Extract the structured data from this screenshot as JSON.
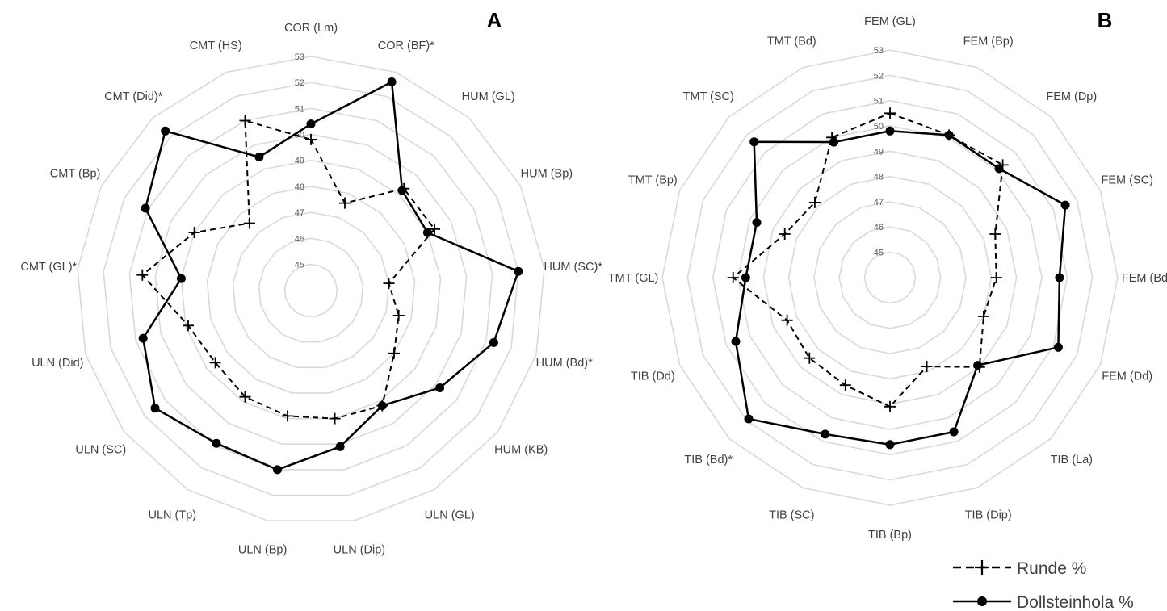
{
  "chart_data": [
    {
      "type": "radar",
      "panel": "A",
      "categories": [
        "COR (Lm)",
        "COR (BF)*",
        "HUM (GL)",
        "HUM (Bp)",
        "HUM (SC)*",
        "HUM (Bd)*",
        "HUM (KB)",
        "ULN (GL)",
        "ULN (Dip)",
        "ULN (Bp)",
        "ULN (Tp)",
        "ULN (SC)",
        "ULN (Did)",
        "CMT (GL)*",
        "CMT (Bp)",
        "CMT (Did)*",
        "CMT (HS)"
      ],
      "ticks": [
        "45",
        "46",
        "47",
        "48",
        "49",
        "50",
        "51",
        "52",
        "53"
      ],
      "rlim": [
        45,
        53
      ],
      "series": [
        {
          "name": "Runde %",
          "style": "dashed-plus",
          "values": [
            49.8,
            47.6,
            49.3,
            49.3,
            47.0,
            47.5,
            48.0,
            49.2,
            49.0,
            48.9,
            48.8,
            48.6,
            48.9,
            50.5,
            49.0,
            47.5,
            51.0
          ]
        },
        {
          "name": "Dollsteinhola %",
          "style": "solid-dot",
          "values": [
            50.4,
            52.6,
            49.2,
            49.0,
            52.0,
            51.3,
            50.2,
            49.2,
            50.1,
            51.0,
            50.9,
            51.5,
            50.7,
            49.0,
            51.1,
            52.3,
            49.5
          ]
        }
      ]
    },
    {
      "type": "radar",
      "panel": "B",
      "categories": [
        "FEM (GL)",
        "FEM (Bp)",
        "FEM (Dp)",
        "FEM (SC)",
        "FEM (Bd)",
        "FEM (Dd)",
        "TIB (La)",
        "TIB (Dip)",
        "TIB (Bp)",
        "TIB (SC)",
        "TIB (Bd)*",
        "TIB (Dd)",
        "TMT (GL)",
        "TMT (Bp)",
        "TMT (SC)",
        "TMT (Bd)"
      ],
      "ticks": [
        "45",
        "46",
        "47",
        "48",
        "49",
        "50",
        "51",
        "52",
        "53"
      ],
      "rlim": [
        45,
        53
      ],
      "series": [
        {
          "name": "Runde %",
          "style": "dashed-plus",
          "values": [
            50.5,
            50.1,
            50.3,
            48.5,
            48.2,
            48.0,
            49.0,
            47.8,
            49.1,
            48.6,
            48.5,
            48.4,
            50.2,
            48.5,
            48.2,
            50.0
          ]
        },
        {
          "name": "Dollsteinhola %",
          "style": "solid-dot",
          "values": [
            49.8,
            50.1,
            50.1,
            51.5,
            50.7,
            51.2,
            48.9,
            50.6,
            50.6,
            50.7,
            51.9,
            50.6,
            49.7,
            49.7,
            51.6,
            49.8
          ]
        }
      ]
    }
  ],
  "legend": {
    "entries": [
      {
        "label": "Runde %",
        "style": "dashed-plus"
      },
      {
        "label": "Dollsteinhola %",
        "style": "solid-dot"
      }
    ]
  }
}
